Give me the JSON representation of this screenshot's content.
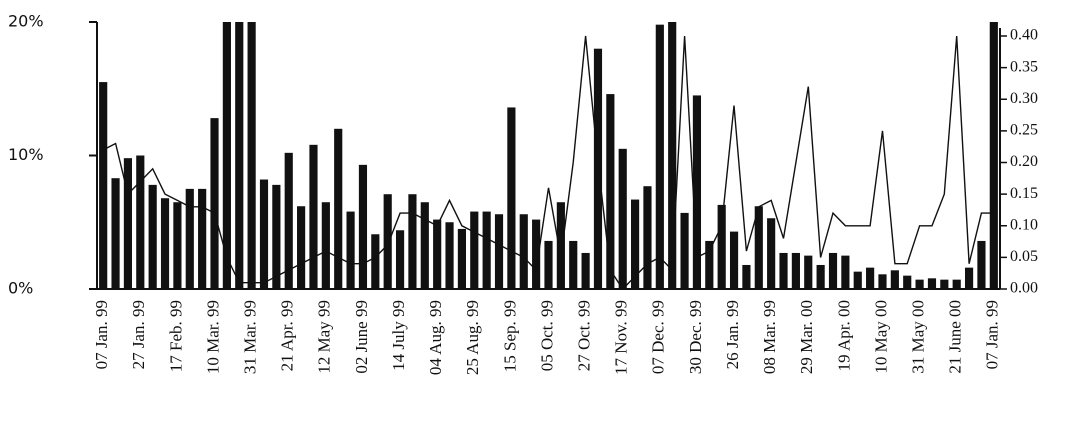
{
  "chart_data": {
    "type": "bar_line",
    "categories": [
      "07 Jan. 99",
      null,
      null,
      "27 Jan. 99",
      null,
      null,
      "17 Feb. 99",
      null,
      null,
      "10 Mar. 99",
      null,
      null,
      "31 Mar. 99",
      null,
      null,
      "21 Apr. 99",
      null,
      null,
      "12 May 99",
      null,
      null,
      "02 June 99",
      null,
      null,
      "14 July 99",
      null,
      null,
      "04 Aug. 99",
      null,
      null,
      "25 Aug. 99",
      null,
      null,
      "15 Sep. 99",
      null,
      null,
      "05 Oct. 99",
      null,
      null,
      "27 Oct. 99",
      null,
      null,
      "17 Nov. 99",
      null,
      null,
      "07 Dec. 99",
      null,
      null,
      "30 Dec. 99",
      null,
      null,
      "26 Jan. 99",
      null,
      null,
      "08 Mar. 99",
      null,
      null,
      "29 Mar. 00",
      null,
      null,
      "19 Apr. 00",
      null,
      null,
      "10 May 00",
      null,
      null,
      "31 May 00",
      null,
      null,
      "21 June 00",
      null,
      null,
      "07 Jan. 99"
    ],
    "series": [
      {
        "color": "#111111",
        "values": [
          15.5,
          8.3,
          9.8,
          10,
          7.8,
          6.8,
          6.5,
          7.5,
          7.5,
          12.8,
          20,
          20,
          20,
          8.2,
          7.8,
          10.2,
          6.2,
          10.8,
          6.5,
          12,
          5.8,
          9.3,
          4.1,
          7.1,
          4.4,
          7.1,
          6.5,
          5.2,
          5,
          4.5,
          5.8,
          5.8,
          5.6,
          13.6,
          5.6,
          5.2,
          3.6,
          6.5,
          3.6,
          2.7,
          18,
          14.6,
          10.5,
          6.7,
          7.7,
          19.8,
          20,
          5.7,
          14.5,
          3.6,
          6.3,
          4.3,
          1.8,
          6.2,
          5.3,
          2.7,
          2.7,
          2.5,
          1.8,
          2.7,
          2.5,
          1.3,
          1.6,
          1.1,
          1.4,
          1.0,
          0.7,
          0.8,
          0.7,
          0.7,
          1.6,
          3.6,
          20
        ]
      },
      {
        "color": "#111111",
        "axis": "y2",
        "values": [
          0.22,
          0.23,
          0.15,
          0.17,
          0.19,
          0.15,
          0.14,
          0.13,
          0.13,
          0.12,
          0.05,
          0.01,
          0.01,
          0.01,
          0.02,
          0.03,
          0.04,
          0.05,
          0.06,
          0.05,
          0.04,
          0.04,
          0.05,
          0.07,
          0.12,
          0.12,
          0.11,
          0.1,
          0.14,
          0.1,
          0.09,
          0.08,
          0.07,
          0.06,
          0.05,
          0.03,
          0.16,
          0.05,
          0.2,
          0.4,
          0.2,
          0.03,
          0.0,
          0.02,
          0.04,
          0.05,
          0.03,
          0.4,
          0.05,
          0.06,
          0.1,
          0.29,
          0.06,
          0.13,
          0.14,
          0.08,
          0.2,
          0.32,
          0.05,
          0.12,
          0.1,
          0.1,
          0.1,
          0.25,
          0.04,
          0.04,
          0.1,
          0.1,
          0.15,
          0.4,
          0.04,
          0.12,
          0.12
        ]
      }
    ],
    "ylim": [
      0,
      20
    ],
    "yticks": [
      {
        "value": 0,
        "label": "0%"
      },
      {
        "value": 10,
        "label": "10%"
      },
      {
        "value": 20,
        "label": "20%"
      }
    ],
    "y2lim": [
      0,
      0.4
    ],
    "y2ticks": [
      {
        "value": 0,
        "label": "0.00"
      },
      {
        "value": 0.05,
        "label": "0.05"
      },
      {
        "value": 0.1,
        "label": "0.10"
      },
      {
        "value": 0.15,
        "label": "0.15"
      },
      {
        "value": 0.2,
        "label": "0.20"
      },
      {
        "value": 0.25,
        "label": "0.25"
      },
      {
        "value": 0.3,
        "label": "0.30"
      },
      {
        "value": 0.35,
        "label": "0.35"
      },
      {
        "value": 0.4,
        "label": "0.40"
      }
    ]
  }
}
